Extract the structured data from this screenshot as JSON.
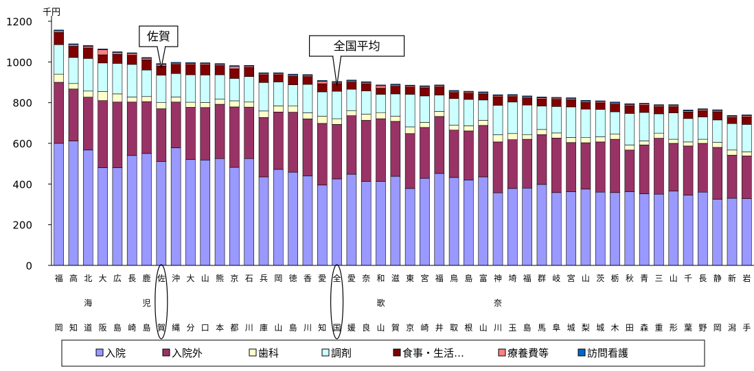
{
  "chart_data": {
    "type": "bar",
    "stacked": true,
    "unit": "千円",
    "ylim": [
      0,
      1200
    ],
    "yticks": [
      0,
      200,
      400,
      600,
      800,
      1000,
      1200
    ],
    "grid": false,
    "legend_placement": "bottom",
    "categories": [
      [
        "福",
        "",
        "岡"
      ],
      [
        "高",
        "",
        "知"
      ],
      [
        "北",
        "海",
        "道"
      ],
      [
        "大",
        "",
        "阪"
      ],
      [
        "広",
        "",
        "島"
      ],
      [
        "長",
        "",
        "崎"
      ],
      [
        "鹿",
        "児",
        "島"
      ],
      [
        "佐",
        "",
        "賀"
      ],
      [
        "沖",
        "",
        "縄"
      ],
      [
        "大",
        "",
        "分"
      ],
      [
        "山",
        "",
        "口"
      ],
      [
        "熊",
        "",
        "本"
      ],
      [
        "京",
        "",
        "都"
      ],
      [
        "石",
        "",
        "川"
      ],
      [
        "兵",
        "",
        "庫"
      ],
      [
        "岡",
        "",
        "山"
      ],
      [
        "徳",
        "",
        "島"
      ],
      [
        "香",
        "",
        "川"
      ],
      [
        "愛",
        "",
        "知"
      ],
      [
        "全",
        "",
        "国"
      ],
      [
        "愛",
        "",
        "媛"
      ],
      [
        "奈",
        "",
        "良"
      ],
      [
        "和",
        "歌",
        "山"
      ],
      [
        "滋",
        "",
        "賀"
      ],
      [
        "東",
        "",
        "京"
      ],
      [
        "宮",
        "",
        "崎"
      ],
      [
        "福",
        "",
        "井"
      ],
      [
        "鳥",
        "",
        "取"
      ],
      [
        "島",
        "",
        "根"
      ],
      [
        "富",
        "",
        "山"
      ],
      [
        "神",
        "奈",
        "川"
      ],
      [
        "埼",
        "",
        "玉"
      ],
      [
        "福",
        "",
        "島"
      ],
      [
        "群",
        "",
        "馬"
      ],
      [
        "岐",
        "",
        "阜"
      ],
      [
        "宮",
        "",
        "城"
      ],
      [
        "山",
        "",
        "梨"
      ],
      [
        "茨",
        "",
        "城"
      ],
      [
        "栃",
        "",
        "木"
      ],
      [
        "秋",
        "",
        "田"
      ],
      [
        "青",
        "",
        "森"
      ],
      [
        "三",
        "",
        "重"
      ],
      [
        "山",
        "",
        "形"
      ],
      [
        "千",
        "",
        "葉"
      ],
      [
        "長",
        "",
        "野"
      ],
      [
        "静",
        "",
        "岡"
      ],
      [
        "新",
        "",
        "潟"
      ],
      [
        "岩",
        "",
        "手"
      ]
    ],
    "series": [
      {
        "name": "入院",
        "color": "#9999ff",
        "values": [
          600,
          612,
          567,
          480,
          480,
          540,
          550,
          510,
          578,
          520,
          518,
          525,
          482,
          525,
          435,
          472,
          458,
          440,
          395,
          425,
          448,
          413,
          413,
          438,
          378,
          428,
          452,
          432,
          420,
          435,
          357,
          378,
          380,
          398,
          358,
          362,
          375,
          360,
          358,
          362,
          352,
          350,
          365,
          345,
          360,
          325,
          330,
          328
        ]
      },
      {
        "name": "入院外",
        "color": "#993366",
        "values": [
          300,
          255,
          260,
          330,
          323,
          263,
          255,
          260,
          225,
          257,
          258,
          267,
          297,
          253,
          292,
          282,
          295,
          280,
          303,
          268,
          288,
          300,
          308,
          270,
          270,
          250,
          280,
          233,
          241,
          253,
          250,
          240,
          240,
          245,
          268,
          242,
          228,
          247,
          262,
          205,
          240,
          275,
          235,
          242,
          240,
          255,
          212,
          210
        ]
      },
      {
        "name": "歯科",
        "color": "#ffffcc",
        "values": [
          40,
          27,
          30,
          45,
          40,
          25,
          25,
          30,
          25,
          25,
          25,
          25,
          30,
          25,
          32,
          30,
          30,
          30,
          35,
          28,
          25,
          30,
          30,
          25,
          33,
          25,
          25,
          25,
          25,
          25,
          35,
          30,
          23,
          25,
          25,
          25,
          25,
          25,
          25,
          25,
          20,
          25,
          20,
          20,
          20,
          25,
          25,
          20
        ]
      },
      {
        "name": "調剤",
        "color": "#ccffff",
        "values": [
          145,
          128,
          160,
          140,
          150,
          160,
          130,
          135,
          115,
          135,
          135,
          120,
          110,
          125,
          140,
          118,
          105,
          140,
          120,
          135,
          105,
          115,
          90,
          110,
          160,
          130,
          80,
          130,
          130,
          100,
          145,
          155,
          145,
          115,
          130,
          150,
          140,
          135,
          110,
          155,
          140,
          95,
          130,
          115,
          110,
          110,
          130,
          135
        ]
      },
      {
        "name": "食事・生活…",
        "color": "#800000",
        "values": [
          60,
          55,
          52,
          40,
          45,
          45,
          50,
          45,
          45,
          50,
          50,
          45,
          47,
          45,
          38,
          35,
          42,
          38,
          40,
          38,
          35,
          35,
          30,
          38,
          35,
          40,
          40,
          30,
          30,
          30,
          42,
          27,
          35,
          35,
          35,
          35,
          33,
          32,
          38,
          38,
          35,
          35,
          30,
          32,
          30,
          40,
          30,
          37
        ]
      },
      {
        "name": "療養費等",
        "color": "#ff8080",
        "values": [
          8,
          8,
          8,
          25,
          8,
          8,
          8,
          8,
          6,
          6,
          6,
          6,
          12,
          6,
          6,
          6,
          6,
          6,
          12,
          6,
          6,
          6,
          12,
          6,
          6,
          6,
          6,
          6,
          6,
          6,
          6,
          6,
          6,
          6,
          6,
          6,
          6,
          6,
          6,
          6,
          6,
          6,
          6,
          6,
          6,
          6,
          6,
          6
        ]
      },
      {
        "name": "訪問看護",
        "color": "#0066cc",
        "values": [
          4,
          4,
          4,
          4,
          4,
          4,
          4,
          4,
          4,
          4,
          4,
          4,
          4,
          4,
          4,
          4,
          4,
          4,
          4,
          4,
          4,
          4,
          4,
          4,
          4,
          4,
          4,
          4,
          4,
          4,
          4,
          4,
          4,
          4,
          4,
          4,
          4,
          4,
          4,
          4,
          4,
          4,
          4,
          4,
          4,
          4,
          4,
          4
        ]
      }
    ],
    "annotations": [
      {
        "text": "佐賀",
        "category_index": 7
      },
      {
        "text": "全国平均",
        "category_index": 19
      }
    ]
  }
}
